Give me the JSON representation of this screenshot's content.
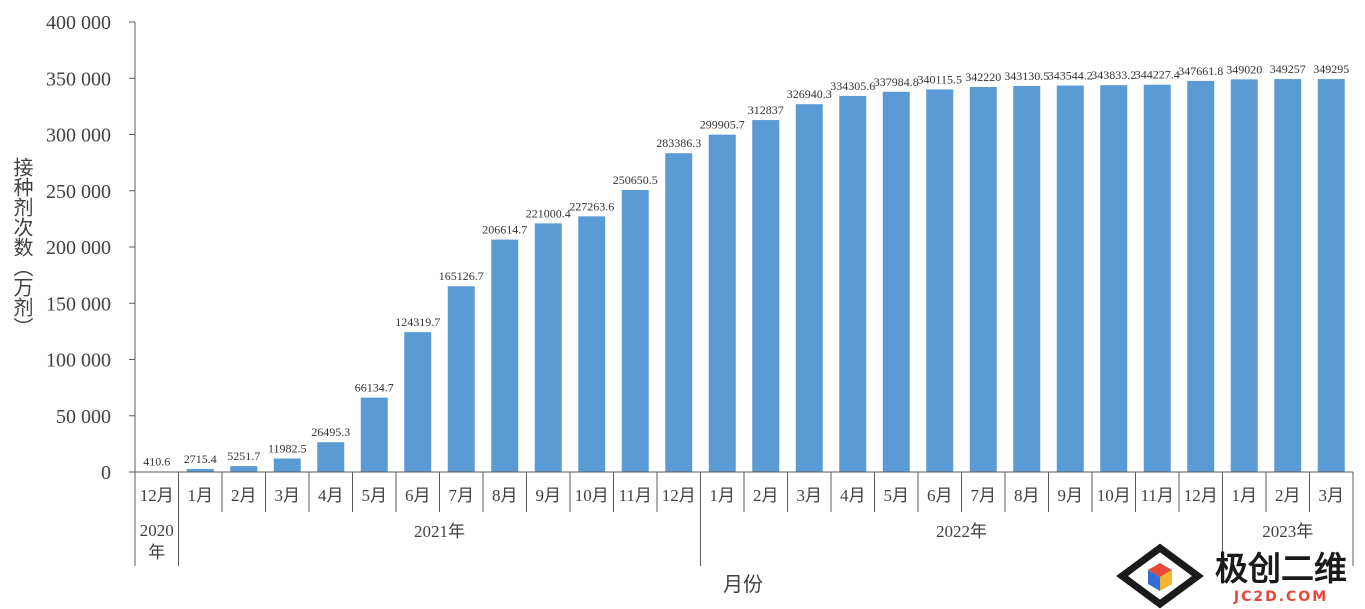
{
  "chart_data": {
    "type": "bar",
    "xlabel": "月份",
    "ylabel": "接种剂次数（万剂）",
    "ylim": [
      0,
      400000
    ],
    "yticks": [
      "0",
      "50 000",
      "100 000",
      "150 000",
      "200 000",
      "250 000",
      "300 000",
      "350 000",
      "400 000"
    ],
    "ytick_values": [
      0,
      50000,
      100000,
      150000,
      200000,
      250000,
      300000,
      350000,
      400000
    ],
    "bar_color": "#5b9bd5",
    "grid": false,
    "categories": [
      "12月",
      "1月",
      "2月",
      "3月",
      "4月",
      "5月",
      "6月",
      "7月",
      "8月",
      "9月",
      "10月",
      "11月",
      "12月",
      "1月",
      "2月",
      "3月",
      "4月",
      "5月",
      "6月",
      "7月",
      "8月",
      "9月",
      "10月",
      "11月",
      "12月",
      "1月",
      "2月",
      "3月"
    ],
    "values": [
      410.6,
      2715.4,
      5251.7,
      11982.5,
      26495.3,
      66134.7,
      124319.7,
      165126.7,
      206614.7,
      221000.4,
      227263.6,
      250650.5,
      283386.3,
      299905.7,
      312837,
      326940.3,
      334305.6,
      337984.8,
      340115.5,
      342220,
      343130.5,
      343544.2,
      343833.2,
      344227.4,
      347661.8,
      349020,
      349257,
      349295
    ],
    "labels": [
      "410.6",
      "2715.4",
      "5251.7",
      "11982.5",
      "26495.3",
      "66134.7",
      "124319.7",
      "165126.7",
      "206614.7",
      "221000.4",
      "227263.6",
      "250650.5",
      "283386.3",
      "299905.7",
      "312837",
      "326940.3",
      "334305.6",
      "337984.8",
      "340115.5",
      "342220",
      "343130.5",
      "343544.2",
      "343833.2",
      "344227.4",
      "347661.8",
      "349020",
      "349257",
      "349295"
    ],
    "year_groups": [
      {
        "label": "2020年",
        "start": 0,
        "end": 0
      },
      {
        "label": "2021年",
        "start": 1,
        "end": 12
      },
      {
        "label": "2022年",
        "start": 13,
        "end": 24
      },
      {
        "label": "2023年",
        "start": 25,
        "end": 27
      }
    ]
  },
  "watermark": {
    "text": "极创二维",
    "subtext": "JC2D.COM",
    "icon": "cube-logo-icon"
  }
}
